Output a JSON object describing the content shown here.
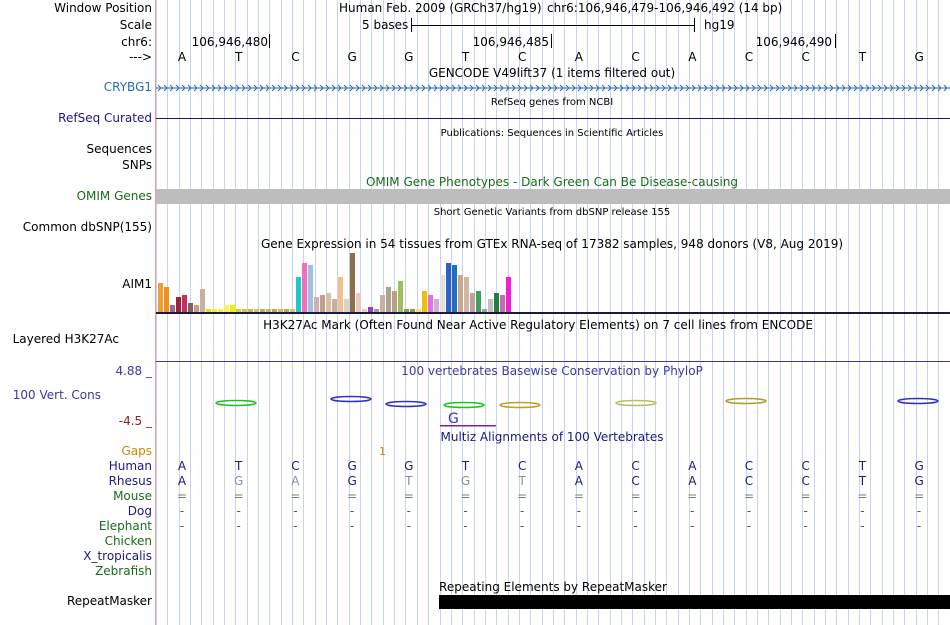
{
  "labels": {
    "window_position": "Window Position",
    "scale": "Scale",
    "chr": "chr6:",
    "arrow": "--->",
    "gene": "CRYBG1",
    "refseq": "RefSeq Curated",
    "sequences": "Sequences",
    "snps": "SNPs",
    "omim": "OMIM Genes",
    "dbsnp": "Common dbSNP(155)",
    "aim1": "AIM1",
    "h3k27": "Layered H3K27Ac",
    "cons_max": "4.88 _",
    "cons": "100 Vert. Cons",
    "cons_min": "-4.5 _",
    "gaps": "Gaps",
    "species": [
      "Human",
      "Rhesus",
      "Mouse",
      "Dog",
      "Elephant",
      "Chicken",
      "X_tropicalis",
      "Zebrafish"
    ],
    "repeat": "RepeatMasker"
  },
  "header": {
    "assembly": "Human Feb. 2009 (GRCh37/hg19)",
    "position": "chr6:106,946,479-106,946,492 (14 bp)",
    "scale_text": "5 bases",
    "scale_db": "hg19",
    "ruler": [
      "106,946,480",
      "106,946,485",
      "106,946,490"
    ]
  },
  "bases": [
    "A",
    "T",
    "C",
    "G",
    "G",
    "T",
    "C",
    "A",
    "C",
    "A",
    "C",
    "C",
    "T",
    "G"
  ],
  "tracks": {
    "gencode": "GENCODE V49lift37 (1 items filtered out)",
    "refseq": "RefSeq genes from NCBI",
    "publications": "Publications: Sequences in Scientific Articles",
    "omim": "OMIM Gene Phenotypes - Dark Green Can Be Disease-causing",
    "dbsnp": "Short Genetic Variants from dbSNP release 155",
    "gtex": "Gene Expression in 54 tissues from GTEx RNA-seq of 17382 samples, 948 donors (V8, Aug 2019)",
    "h3k27": "H3K27Ac Mark (Often Found Near Active Regulatory Elements) on 7 cell lines from ENCODE",
    "phylop": "100 vertebrates Basewise Conservation by PhyloP",
    "multiz": "Multiz Alignments of 100 Vertebrates",
    "repeatmasker": "Repeating Elements by RepeatMasker",
    "gap_mark": "1"
  },
  "alignment": {
    "human": [
      "A",
      "T",
      "C",
      "G",
      "G",
      "T",
      "C",
      "A",
      "C",
      "A",
      "C",
      "C",
      "T",
      "G"
    ],
    "rhesus": [
      "A",
      "G",
      "A",
      "G",
      "T",
      "G",
      "T",
      "A",
      "C",
      "A",
      "C",
      "C",
      "T",
      "G"
    ],
    "mouse": [
      "=",
      "=",
      "=",
      "=",
      "=",
      "=",
      "=",
      "=",
      "=",
      "=",
      "=",
      "=",
      "=",
      "="
    ],
    "dog": [
      "-",
      "-",
      "-",
      "-",
      "-",
      "-",
      "-",
      "-",
      "-",
      "-",
      "-",
      "-",
      "-",
      "-"
    ],
    "elephant": [
      "-",
      "-",
      "-",
      "-",
      "-",
      "-",
      "-",
      "-",
      "-",
      "-",
      "-",
      "-",
      "-",
      "-"
    ]
  },
  "colors": {
    "gene": "#2a6bb0",
    "navy": "#1a1a80",
    "omim_green": "#1a6b1a",
    "gaps": "#cc8a00",
    "cons_blue": "#3a3aa0",
    "cons_red": "#8a2020"
  }
}
